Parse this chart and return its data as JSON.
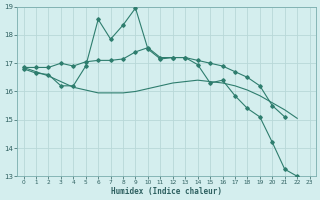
{
  "xlabel": "Humidex (Indice chaleur)",
  "x_values": [
    0,
    1,
    2,
    3,
    4,
    5,
    6,
    7,
    8,
    9,
    10,
    11,
    12,
    13,
    14,
    15,
    16,
    17,
    18,
    19,
    20,
    21,
    22,
    23
  ],
  "line1": [
    16.8,
    16.65,
    16.6,
    16.2,
    16.2,
    16.9,
    18.55,
    17.85,
    18.35,
    18.95,
    17.5,
    17.15,
    17.2,
    17.2,
    16.95,
    16.3,
    16.4,
    15.85,
    15.4,
    15.1,
    14.2,
    13.25,
    13.0,
    12.9
  ],
  "line2": [
    16.85,
    16.85,
    16.85,
    17.0,
    16.9,
    17.05,
    17.1,
    17.1,
    17.15,
    17.4,
    17.55,
    17.2,
    17.2,
    17.2,
    17.1,
    17.0,
    16.9,
    16.7,
    16.5,
    16.2,
    15.5,
    15.1,
    null,
    null
  ],
  "line3": [
    16.85,
    16.7,
    16.55,
    16.35,
    16.15,
    16.05,
    15.95,
    15.95,
    15.95,
    16.0,
    16.1,
    16.2,
    16.3,
    16.35,
    16.4,
    16.35,
    16.3,
    16.2,
    16.05,
    15.85,
    15.6,
    15.35,
    15.05,
    null
  ],
  "line_color": "#2e7d6e",
  "bg_color": "#d4eeee",
  "grid_color": "#b8d8d8",
  "ylim": [
    13,
    19
  ],
  "xlim": [
    -0.5,
    23.5
  ],
  "yticks": [
    13,
    14,
    15,
    16,
    17,
    18,
    19
  ],
  "xticks": [
    0,
    1,
    2,
    3,
    4,
    5,
    6,
    7,
    8,
    9,
    10,
    11,
    12,
    13,
    14,
    15,
    16,
    17,
    18,
    19,
    20,
    21,
    22,
    23
  ]
}
